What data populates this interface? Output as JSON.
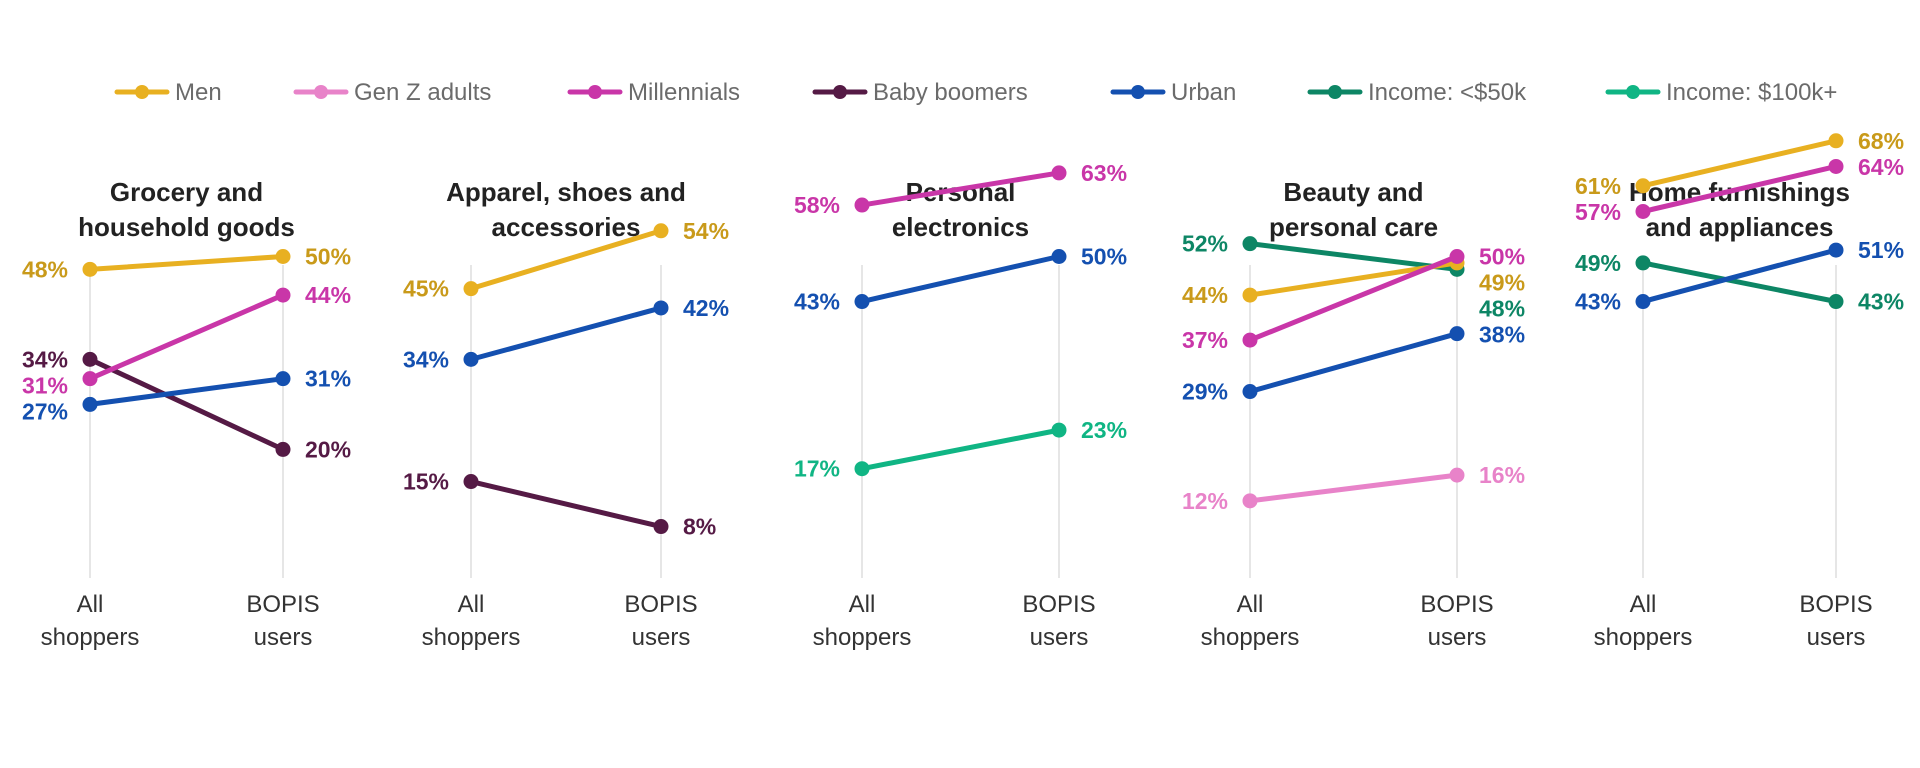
{
  "colors": {
    "Men": "#e8b021",
    "Gen Z adults": "#e883c9",
    "Millennials": "#c936a8",
    "Baby boomers": "#551a45",
    "Urban": "#1450b0",
    "Income: <$50k": "#0d8665",
    "Income: $100k+": "#10b584"
  },
  "label_colors": {
    "Men": "#c99a1a",
    "Gen Z adults": "#e883c9",
    "Millennials": "#c936a8",
    "Baby boomers": "#551a45",
    "Urban": "#1450b0",
    "Income: <$50k": "#0d8665",
    "Income: $100k+": "#10b584"
  },
  "legend": [
    "Men",
    "Gen Z adults",
    "Millennials",
    "Baby boomers",
    "Urban",
    "Income: <$50k",
    "Income: $100k+"
  ],
  "chart_data": [
    {
      "type": "line",
      "title": [
        "Grocery and",
        "household goods"
      ],
      "categories": [
        [
          "All",
          "shoppers"
        ],
        [
          "BOPIS",
          "users"
        ]
      ],
      "ylim": [
        0,
        75
      ],
      "series": [
        {
          "name": "Men",
          "values": [
            48,
            50
          ]
        },
        {
          "name": "Baby boomers",
          "values": [
            34,
            20
          ]
        },
        {
          "name": "Millennials",
          "values": [
            31,
            44
          ]
        },
        {
          "name": "Urban",
          "values": [
            27,
            31
          ]
        }
      ]
    },
    {
      "type": "line",
      "title": [
        "Apparel, shoes and",
        "accessories"
      ],
      "categories": [
        [
          "All",
          "shoppers"
        ],
        [
          "BOPIS",
          "users"
        ]
      ],
      "ylim": [
        0,
        75
      ],
      "series": [
        {
          "name": "Men",
          "values": [
            45,
            54
          ]
        },
        {
          "name": "Urban",
          "values": [
            34,
            42
          ]
        },
        {
          "name": "Baby boomers",
          "values": [
            15,
            8
          ]
        }
      ]
    },
    {
      "type": "line",
      "title": [
        "Personal",
        "electronics"
      ],
      "categories": [
        [
          "All",
          "shoppers"
        ],
        [
          "BOPIS",
          "users"
        ]
      ],
      "ylim": [
        0,
        75
      ],
      "series": [
        {
          "name": "Millennials",
          "values": [
            58,
            63
          ]
        },
        {
          "name": "Urban",
          "values": [
            43,
            50
          ]
        },
        {
          "name": "Income: $100k+",
          "values": [
            17,
            23
          ]
        }
      ]
    },
    {
      "type": "line",
      "title": [
        "Beauty and",
        "personal care"
      ],
      "categories": [
        [
          "All",
          "shoppers"
        ],
        [
          "BOPIS",
          "users"
        ]
      ],
      "ylim": [
        0,
        75
      ],
      "series": [
        {
          "name": "Income: <$50k",
          "values": [
            52,
            48
          ]
        },
        {
          "name": "Men",
          "values": [
            44,
            49
          ]
        },
        {
          "name": "Millennials",
          "values": [
            37,
            50
          ]
        },
        {
          "name": "Urban",
          "values": [
            29,
            38
          ]
        },
        {
          "name": "Gen Z adults",
          "values": [
            12,
            16
          ]
        }
      ]
    },
    {
      "type": "line",
      "title": [
        "Home furnishings",
        "and appliances"
      ],
      "categories": [
        [
          "All",
          "shoppers"
        ],
        [
          "BOPIS",
          "users"
        ]
      ],
      "ylim": [
        0,
        75
      ],
      "series": [
        {
          "name": "Men",
          "values": [
            61,
            68
          ]
        },
        {
          "name": "Millennials",
          "values": [
            57,
            64
          ]
        },
        {
          "name": "Income: <$50k",
          "values": [
            49,
            43
          ]
        },
        {
          "name": "Urban",
          "values": [
            43,
            51
          ]
        }
      ]
    }
  ]
}
